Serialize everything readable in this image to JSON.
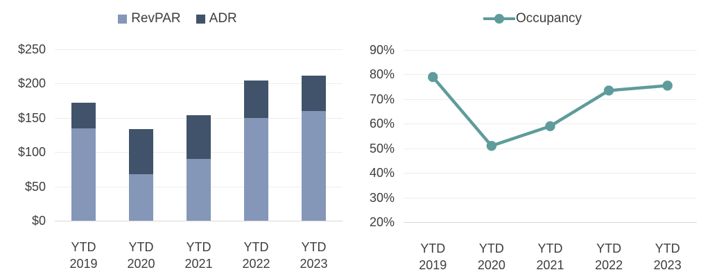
{
  "background": "#FFFFFF",
  "text_color": "#3D3D3D",
  "grid_color": "#EDEDED",
  "axis_color": "#D8D8D8",
  "chart_data": [
    {
      "type": "bar",
      "subtype": "stacked",
      "note": "Bar total height equals ADR value; light lower segment is RevPAR, dark upper segment spans from RevPAR up to ADR",
      "categories": [
        "YTD 2019",
        "YTD 2020",
        "YTD 2021",
        "YTD 2022",
        "YTD 2023"
      ],
      "series": [
        {
          "name": "RevPAR",
          "color": "#8497B9",
          "values": [
            135,
            68,
            90,
            150,
            160
          ]
        },
        {
          "name": "ADR",
          "color": "#41536A",
          "values": [
            172,
            134,
            154,
            204,
            212
          ]
        }
      ],
      "ylim": [
        0,
        250
      ],
      "ytick_step": 50,
      "ytick_labels": [
        "$250",
        "$200",
        "$150",
        "$100",
        "$50",
        "$0"
      ],
      "legend_position": "top",
      "grid": true
    },
    {
      "type": "line",
      "categories": [
        "YTD 2019",
        "YTD 2020",
        "YTD 2021",
        "YTD 2022",
        "YTD 2023"
      ],
      "series": [
        {
          "name": "Occupancy",
          "color": "#5E9C9B",
          "marker": "circle",
          "values": [
            79,
            51,
            59,
            73.5,
            75.5
          ]
        }
      ],
      "ylim": [
        20,
        90
      ],
      "ytick_step": 10,
      "ytick_labels": [
        "90%",
        "80%",
        "70%",
        "60%",
        "50%",
        "40%",
        "30%",
        "20%"
      ],
      "legend_position": "top",
      "grid": true
    }
  ]
}
